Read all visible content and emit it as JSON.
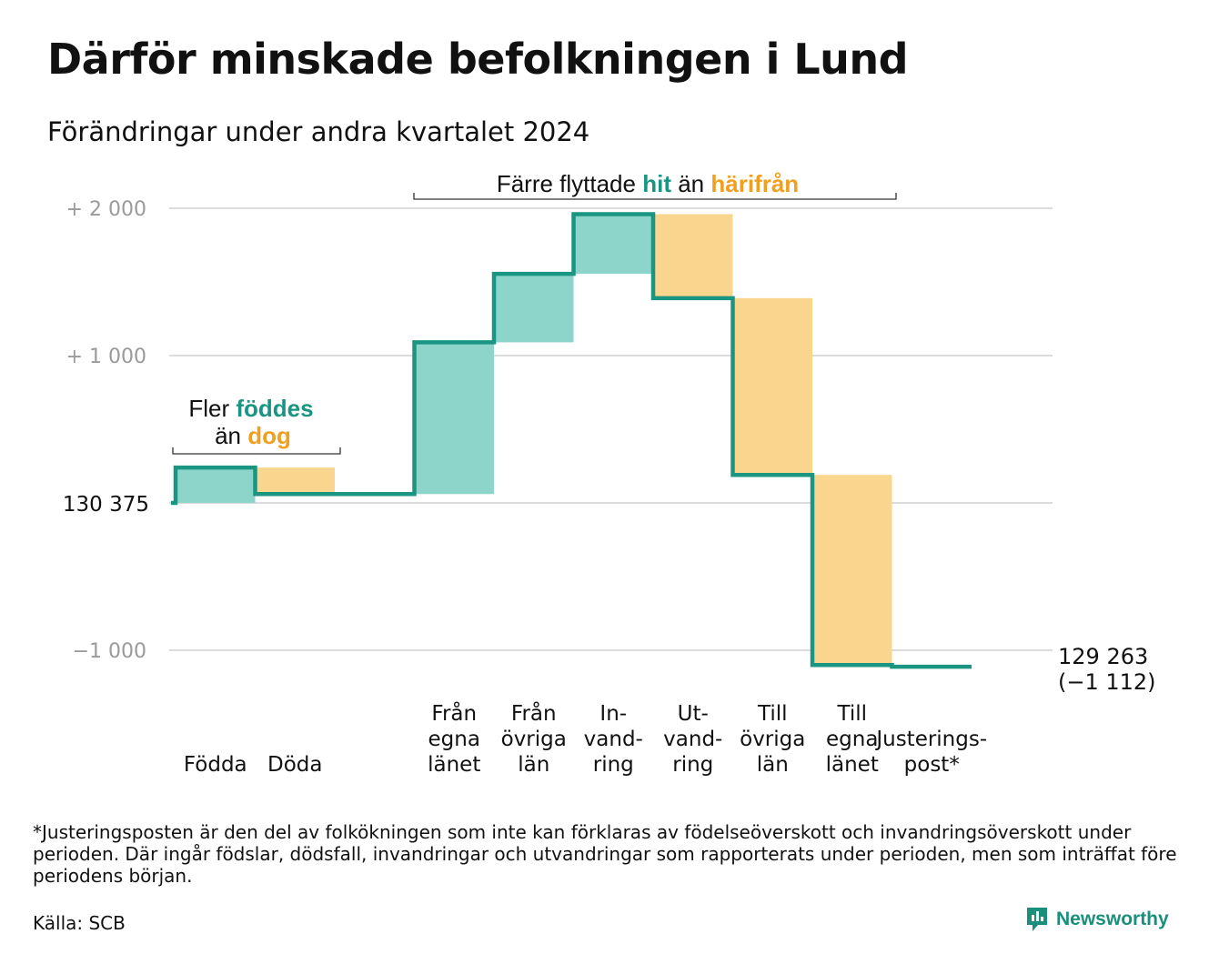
{
  "title": "Därför minskade befolkningen i Lund",
  "subtitle": "Förändringar under andra kvartalet 2024",
  "footnote": "*Justeringsposten är den del av folkökningen som inte kan förklaras av födelseöverskott och invandringsöverskott under perioden. Där ingår födslar, dödsfall, invandringar och utvandringar som rapporterats under perioden, men som inträffat före periodens början.",
  "source": "Källa: SCB",
  "brand": "Newsworthy",
  "colors": {
    "increase": "#8dd5cb",
    "decrease": "#fad58d",
    "line": "#1a9582",
    "teal_text": "#1a9582",
    "orange_text": "#f0a020",
    "grid": "#dcdcdc"
  },
  "chart_data": {
    "type": "waterfall",
    "start_label": "130  375",
    "start_value": 0,
    "end_label_line1": "129 263",
    "end_label_line2": "(−1 112)",
    "y_ticks": [
      {
        "value": 2000,
        "label": "+  2  000"
      },
      {
        "value": 1000,
        "label": "+  1  000"
      },
      {
        "value": 0,
        "label": ""
      },
      {
        "value": -1000,
        "label": "−1  000"
      }
    ],
    "ylim": [
      -1300,
      2200
    ],
    "steps": [
      {
        "label": [
          "Födda"
        ],
        "change": 240
      },
      {
        "label": [
          "Döda"
        ],
        "change": -180
      },
      {
        "label": [],
        "change": 0
      },
      {
        "label": [
          "Från",
          "egna",
          "länet"
        ],
        "change": 1030
      },
      {
        "label": [
          "Från",
          "övriga",
          "län"
        ],
        "change": 465
      },
      {
        "label": [
          "In-",
          "vand-",
          "ring"
        ],
        "change": 405
      },
      {
        "label": [
          "Ut-",
          "vand-",
          "ring"
        ],
        "change": -570
      },
      {
        "label": [
          "Till",
          "övriga",
          "län"
        ],
        "change": -1200
      },
      {
        "label": [
          "Till",
          "egna",
          "länet"
        ],
        "change": -1290
      },
      {
        "label": [
          "Justerings-",
          "post*"
        ],
        "change": -12
      }
    ],
    "annotations": [
      {
        "parts": [
          {
            "text": "Fler ",
            "color": "dark"
          },
          {
            "text": "föddes",
            "color": "teal"
          }
        ],
        "parts2": [
          {
            "text": "än ",
            "color": "dark"
          },
          {
            "text": "dog",
            "color": "orange"
          }
        ]
      },
      {
        "parts": [
          {
            "text": "Färre flyttade ",
            "color": "dark"
          },
          {
            "text": "hit",
            "color": "teal"
          },
          {
            "text": "  än ",
            "color": "dark"
          },
          {
            "text": "härifrån",
            "color": "orange"
          }
        ]
      }
    ]
  }
}
